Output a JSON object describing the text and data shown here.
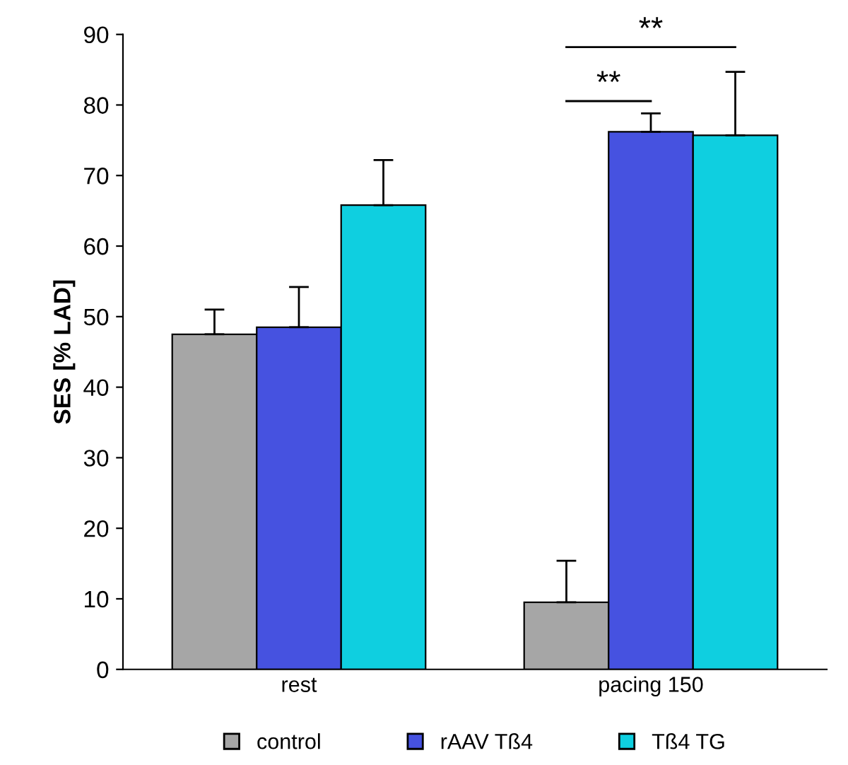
{
  "chart_data": {
    "type": "bar",
    "ylabel": "SES [% LAD]",
    "categories": [
      "rest",
      "pacing 150"
    ],
    "series": [
      {
        "name": "control",
        "color": "#a6a6a6",
        "values": [
          47.5,
          9.5
        ],
        "errors": [
          [
            47.5,
            51.0
          ],
          [
            9.5,
            15.4
          ]
        ]
      },
      {
        "name": "rAAV Tß4",
        "color": "#4652e0",
        "values": [
          48.5,
          76.2
        ],
        "errors": [
          [
            48.5,
            54.2
          ],
          [
            76.2,
            78.8
          ]
        ]
      },
      {
        "name": "Tß4 TG",
        "color": "#0fcfe0",
        "values": [
          65.8,
          75.7
        ],
        "errors": [
          [
            65.8,
            72.2
          ],
          [
            75.7,
            84.7
          ]
        ]
      }
    ],
    "ylim": [
      0,
      90
    ],
    "yticks": [
      0,
      10,
      20,
      30,
      40,
      50,
      60,
      70,
      80,
      90
    ],
    "grid": false,
    "legend": "bottom",
    "annotations": [
      "**",
      "**"
    ]
  }
}
